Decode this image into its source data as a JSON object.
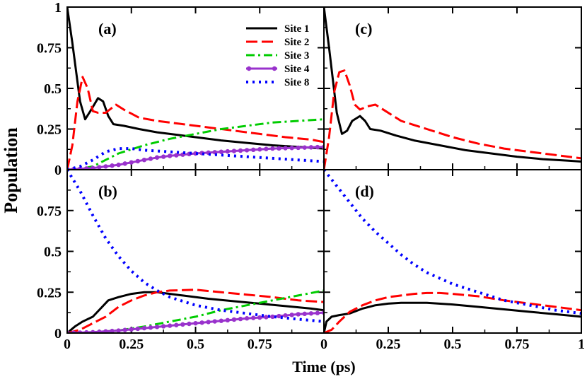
{
  "figure": {
    "xlabel": "Time (ps)",
    "ylabel": "Population"
  },
  "chart_data": [
    {
      "panel": "(a)",
      "type": "line",
      "xlim": [
        0,
        1
      ],
      "ylim": [
        0,
        1
      ],
      "xticks": [],
      "yticks": [
        "1",
        "0.75",
        "0.5",
        "0.25",
        "0"
      ],
      "legend": "top-right",
      "series": [
        {
          "name": "Site 1",
          "style": "solid",
          "color": "#000000",
          "x": [
            0,
            0.02,
            0.05,
            0.07,
            0.09,
            0.12,
            0.14,
            0.16,
            0.18,
            0.22,
            0.28,
            0.35,
            0.4,
            0.5,
            0.6,
            0.7,
            0.8,
            0.9,
            1.0
          ],
          "y": [
            1.0,
            0.78,
            0.42,
            0.31,
            0.36,
            0.44,
            0.42,
            0.33,
            0.28,
            0.27,
            0.25,
            0.23,
            0.22,
            0.2,
            0.18,
            0.165,
            0.15,
            0.14,
            0.13
          ]
        },
        {
          "name": "Site 2",
          "style": "dash",
          "color": "#ff0000",
          "x": [
            0,
            0.02,
            0.04,
            0.06,
            0.08,
            0.1,
            0.12,
            0.15,
            0.19,
            0.22,
            0.28,
            0.35,
            0.45,
            0.55,
            0.65,
            0.75,
            0.85,
            0.95,
            1.0
          ],
          "y": [
            0.0,
            0.15,
            0.42,
            0.57,
            0.5,
            0.36,
            0.35,
            0.35,
            0.4,
            0.37,
            0.32,
            0.3,
            0.28,
            0.26,
            0.24,
            0.22,
            0.2,
            0.185,
            0.17
          ]
        },
        {
          "name": "Site 3",
          "style": "dashdot",
          "color": "#00cc00",
          "x": [
            0,
            0.05,
            0.1,
            0.15,
            0.2,
            0.3,
            0.4,
            0.5,
            0.6,
            0.7,
            0.8,
            0.9,
            1.0
          ],
          "y": [
            0.0,
            0.005,
            0.02,
            0.06,
            0.1,
            0.15,
            0.19,
            0.22,
            0.25,
            0.27,
            0.29,
            0.3,
            0.31
          ]
        },
        {
          "name": "Site 4",
          "style": "solid-marker",
          "color": "#9932cc",
          "x": [
            0,
            0.05,
            0.1,
            0.15,
            0.2,
            0.25,
            0.3,
            0.35,
            0.4,
            0.5,
            0.6,
            0.7,
            0.8,
            0.9,
            1.0
          ],
          "y": [
            0.0,
            0.005,
            0.01,
            0.02,
            0.03,
            0.045,
            0.06,
            0.075,
            0.085,
            0.1,
            0.11,
            0.12,
            0.13,
            0.135,
            0.14
          ]
        },
        {
          "name": "Site 8",
          "style": "dot",
          "color": "#0000ff",
          "x": [
            0,
            0.05,
            0.1,
            0.15,
            0.2,
            0.25,
            0.3,
            0.4,
            0.5,
            0.6,
            0.7,
            0.8,
            0.9,
            1.0
          ],
          "y": [
            0.0,
            0.02,
            0.06,
            0.11,
            0.13,
            0.13,
            0.12,
            0.11,
            0.1,
            0.09,
            0.08,
            0.07,
            0.06,
            0.05
          ]
        }
      ]
    },
    {
      "panel": "(b)",
      "type": "line",
      "xlim": [
        0,
        1
      ],
      "ylim": [
        0,
        1
      ],
      "xticks": [
        "0",
        "0.25",
        "0.5",
        "0.75",
        ""
      ],
      "yticks": [
        "",
        "0.75",
        "0.5",
        "0.25",
        "0"
      ],
      "series": [
        {
          "name": "Site 1",
          "style": "solid",
          "color": "#000000",
          "x": [
            0,
            0.03,
            0.06,
            0.1,
            0.13,
            0.16,
            0.2,
            0.25,
            0.3,
            0.35,
            0.45,
            0.55,
            0.65,
            0.75,
            0.85,
            0.95,
            1.0
          ],
          "y": [
            0.0,
            0.04,
            0.07,
            0.1,
            0.15,
            0.2,
            0.22,
            0.24,
            0.25,
            0.25,
            0.23,
            0.21,
            0.195,
            0.18,
            0.165,
            0.15,
            0.14
          ]
        },
        {
          "name": "Site 2",
          "style": "dash",
          "color": "#ff0000",
          "x": [
            0,
            0.05,
            0.1,
            0.15,
            0.2,
            0.25,
            0.3,
            0.35,
            0.4,
            0.5,
            0.6,
            0.7,
            0.8,
            0.9,
            1.0
          ],
          "y": [
            0.0,
            0.02,
            0.06,
            0.1,
            0.16,
            0.2,
            0.23,
            0.25,
            0.26,
            0.265,
            0.25,
            0.235,
            0.22,
            0.2,
            0.19
          ]
        },
        {
          "name": "Site 3",
          "style": "dashdot",
          "color": "#00cc00",
          "x": [
            0,
            0.1,
            0.2,
            0.3,
            0.4,
            0.5,
            0.6,
            0.7,
            0.8,
            0.9,
            1.0
          ],
          "y": [
            0.0,
            0.005,
            0.015,
            0.04,
            0.07,
            0.1,
            0.14,
            0.17,
            0.2,
            0.23,
            0.26
          ]
        },
        {
          "name": "Site 4",
          "style": "solid-marker",
          "color": "#9932cc",
          "x": [
            0,
            0.1,
            0.2,
            0.3,
            0.4,
            0.5,
            0.6,
            0.7,
            0.8,
            0.9,
            1.0
          ],
          "y": [
            0.0,
            0.005,
            0.015,
            0.03,
            0.045,
            0.06,
            0.075,
            0.09,
            0.1,
            0.115,
            0.125
          ]
        },
        {
          "name": "Site 8",
          "style": "dot",
          "color": "#0000ff",
          "x": [
            0,
            0.05,
            0.1,
            0.15,
            0.2,
            0.25,
            0.3,
            0.35,
            0.4,
            0.5,
            0.6,
            0.7,
            0.8,
            0.9,
            1.0
          ],
          "y": [
            1.0,
            0.87,
            0.72,
            0.58,
            0.47,
            0.38,
            0.31,
            0.26,
            0.22,
            0.17,
            0.14,
            0.12,
            0.1,
            0.085,
            0.07
          ]
        }
      ]
    },
    {
      "panel": "(c)",
      "type": "line",
      "xlim": [
        0,
        1
      ],
      "ylim": [
        0,
        1
      ],
      "xticks": [],
      "yticks": [],
      "series": [
        {
          "name": "Site 1",
          "style": "solid",
          "color": "#000000",
          "x": [
            0,
            0.02,
            0.05,
            0.07,
            0.09,
            0.11,
            0.14,
            0.16,
            0.18,
            0.22,
            0.28,
            0.35,
            0.45,
            0.55,
            0.65,
            0.75,
            0.85,
            0.95,
            1.0
          ],
          "y": [
            1.0,
            0.75,
            0.35,
            0.22,
            0.24,
            0.3,
            0.33,
            0.3,
            0.25,
            0.24,
            0.21,
            0.18,
            0.15,
            0.12,
            0.1,
            0.08,
            0.065,
            0.055,
            0.05
          ]
        },
        {
          "name": "Site 2",
          "style": "dash",
          "color": "#ff0000",
          "x": [
            0,
            0.02,
            0.04,
            0.06,
            0.08,
            0.1,
            0.12,
            0.14,
            0.17,
            0.2,
            0.24,
            0.3,
            0.4,
            0.5,
            0.6,
            0.7,
            0.8,
            0.9,
            1.0
          ],
          "y": [
            0.0,
            0.2,
            0.48,
            0.6,
            0.61,
            0.52,
            0.4,
            0.37,
            0.39,
            0.4,
            0.36,
            0.3,
            0.25,
            0.2,
            0.16,
            0.13,
            0.11,
            0.09,
            0.07
          ]
        }
      ]
    },
    {
      "panel": "(d)",
      "type": "line",
      "xlim": [
        0,
        1
      ],
      "ylim": [
        0,
        1
      ],
      "xticks": [
        "0",
        "0.25",
        "0.5",
        "0.75",
        "1"
      ],
      "yticks": [],
      "series": [
        {
          "name": "Site 1",
          "style": "solid",
          "color": "#000000",
          "x": [
            0,
            0.01,
            0.03,
            0.06,
            0.1,
            0.15,
            0.2,
            0.25,
            0.3,
            0.4,
            0.5,
            0.6,
            0.7,
            0.8,
            0.9,
            1.0
          ],
          "y": [
            0.0,
            0.07,
            0.1,
            0.11,
            0.12,
            0.15,
            0.17,
            0.18,
            0.185,
            0.185,
            0.175,
            0.16,
            0.145,
            0.13,
            0.115,
            0.1
          ]
        },
        {
          "name": "Site 2",
          "style": "dash",
          "color": "#ff0000",
          "x": [
            0,
            0.03,
            0.06,
            0.1,
            0.15,
            0.2,
            0.25,
            0.3,
            0.35,
            0.4,
            0.45,
            0.5,
            0.6,
            0.7,
            0.8,
            0.9,
            1.0
          ],
          "y": [
            0.0,
            0.02,
            0.07,
            0.13,
            0.17,
            0.2,
            0.22,
            0.23,
            0.24,
            0.245,
            0.245,
            0.24,
            0.225,
            0.2,
            0.18,
            0.16,
            0.14
          ]
        },
        {
          "name": "Site 8",
          "style": "dot",
          "color": "#0000ff",
          "x": [
            0,
            0.05,
            0.1,
            0.15,
            0.2,
            0.25,
            0.3,
            0.35,
            0.4,
            0.5,
            0.6,
            0.7,
            0.8,
            0.9,
            1.0
          ],
          "y": [
            1.0,
            0.9,
            0.8,
            0.7,
            0.62,
            0.55,
            0.48,
            0.42,
            0.37,
            0.3,
            0.25,
            0.2,
            0.17,
            0.14,
            0.12
          ]
        }
      ]
    }
  ]
}
